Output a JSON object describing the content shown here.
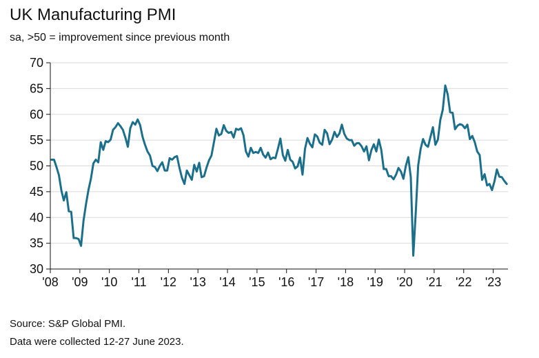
{
  "header": {
    "title": "UK Manufacturing PMI",
    "subtitle": "sa, >50 = improvement since previous month"
  },
  "footer": {
    "source": "Source: S&P Global PMI.",
    "collected": "Data were collected 12-27 June 2023."
  },
  "colors": {
    "line": "#1b6f8a",
    "grid": "#d9d9d9",
    "axis": "#111111"
  },
  "chart_data": {
    "type": "line",
    "title": "UK Manufacturing PMI",
    "subtitle": "sa, >50 = improvement since previous month",
    "xlabel": "",
    "ylabel": "",
    "ylim": [
      30,
      70
    ],
    "yticks": [
      30,
      35,
      40,
      45,
      50,
      55,
      60,
      65,
      70
    ],
    "xlim": [
      2008.0,
      2023.5
    ],
    "xticks": [
      {
        "value": 2008,
        "label": "'08"
      },
      {
        "value": 2009,
        "label": "'09"
      },
      {
        "value": 2010,
        "label": "'10"
      },
      {
        "value": 2011,
        "label": "'11"
      },
      {
        "value": 2012,
        "label": "'12"
      },
      {
        "value": 2013,
        "label": "'13"
      },
      {
        "value": 2014,
        "label": "'14"
      },
      {
        "value": 2015,
        "label": "'15"
      },
      {
        "value": 2016,
        "label": "'16"
      },
      {
        "value": 2017,
        "label": "'17"
      },
      {
        "value": 2018,
        "label": "'18"
      },
      {
        "value": 2019,
        "label": "'19"
      },
      {
        "value": 2020,
        "label": "'20"
      },
      {
        "value": 2021,
        "label": "'21"
      },
      {
        "value": 2022,
        "label": "'22"
      },
      {
        "value": 2023,
        "label": "'23"
      }
    ],
    "grid": true,
    "series": [
      {
        "name": "UK Manufacturing PMI",
        "start": "2008-01",
        "frequency": "monthly",
        "values": [
          51.2,
          51.2,
          49.8,
          48.2,
          45.2,
          43.3,
          44.9,
          41.2,
          41.1,
          36.0,
          36.0,
          35.8,
          34.5,
          39.4,
          42.6,
          45.3,
          47.5,
          50.5,
          51.2,
          50.7,
          54.6,
          53.1,
          54.8,
          54.6,
          55.1,
          57.0,
          57.5,
          58.3,
          57.7,
          57.0,
          55.5,
          53.7,
          57.3,
          58.5,
          58.0,
          59.0,
          57.9,
          55.6,
          54.1,
          52.8,
          52.0,
          50.0,
          49.8,
          49.0,
          50.0,
          50.7,
          49.1,
          49.1,
          51.5,
          51.2,
          51.7,
          51.9,
          49.6,
          47.7,
          46.5,
          49.1,
          48.2,
          47.3,
          50.2,
          48.9,
          50.6,
          47.8,
          48.0,
          49.7,
          51.1,
          52.0,
          54.6,
          57.2,
          55.9,
          56.2,
          57.9,
          56.8,
          56.4,
          56.6,
          55.5,
          57.2,
          57.0,
          57.3,
          56.0,
          52.8,
          51.8,
          53.5,
          52.5,
          52.7,
          52.5,
          53.5,
          52.2,
          51.6,
          52.6,
          51.3,
          51.6,
          51.5,
          53.3,
          55.3,
          52.1,
          51.0,
          53.1,
          51.2,
          50.8,
          49.5,
          49.9,
          51.6,
          48.3,
          53.3,
          55.4,
          54.3,
          53.6,
          56.1,
          55.7,
          54.5,
          54.1,
          57.0,
          56.3,
          54.2,
          55.1,
          56.6,
          55.6,
          56.3,
          58.0,
          56.2,
          55.3,
          55.0,
          55.0,
          53.9,
          54.4,
          54.4,
          53.8,
          52.8,
          53.8,
          51.1,
          53.1,
          54.2,
          52.8,
          55.1,
          53.1,
          49.4,
          49.4,
          48.0,
          48.0,
          47.4,
          48.3,
          49.6,
          48.9,
          47.5,
          50.0,
          51.7,
          47.8,
          32.6,
          40.7,
          50.1,
          53.3,
          55.2,
          54.1,
          53.7,
          55.6,
          57.5,
          54.1,
          55.1,
          58.9,
          60.9,
          65.6,
          63.9,
          60.4,
          60.3,
          57.1,
          57.8,
          58.1,
          57.9,
          57.3,
          58.0,
          55.2,
          55.8,
          54.6,
          52.8,
          52.1,
          47.3,
          48.4,
          46.2,
          46.5,
          45.3,
          47.0,
          49.3,
          47.9,
          47.8,
          47.1,
          46.5
        ]
      }
    ]
  }
}
